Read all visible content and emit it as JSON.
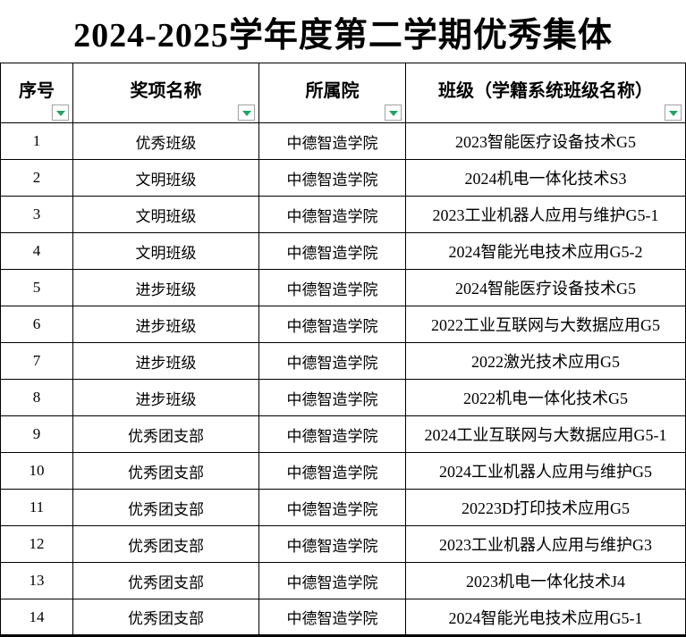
{
  "page": {
    "title": "2024-2025学年度第二学期优秀集体"
  },
  "table": {
    "columns": [
      {
        "label": "序号"
      },
      {
        "label": "奖项名称"
      },
      {
        "label": "所属院"
      },
      {
        "label": "班级（学籍系统班级名称）"
      }
    ],
    "rows": [
      {
        "no": "1",
        "award": "优秀班级",
        "college": "中德智造学院",
        "class_name": "2023智能医疗设备技术G5"
      },
      {
        "no": "2",
        "award": "文明班级",
        "college": "中德智造学院",
        "class_name": "2024机电一体化技术S3"
      },
      {
        "no": "3",
        "award": "文明班级",
        "college": "中德智造学院",
        "class_name": "2023工业机器人应用与维护G5-1"
      },
      {
        "no": "4",
        "award": "文明班级",
        "college": "中德智造学院",
        "class_name": "2024智能光电技术应用G5-2"
      },
      {
        "no": "5",
        "award": "进步班级",
        "college": "中德智造学院",
        "class_name": "2024智能医疗设备技术G5"
      },
      {
        "no": "6",
        "award": "进步班级",
        "college": "中德智造学院",
        "class_name": "2022工业互联网与大数据应用G5"
      },
      {
        "no": "7",
        "award": "进步班级",
        "college": "中德智造学院",
        "class_name": "2022激光技术应用G5"
      },
      {
        "no": "8",
        "award": "进步班级",
        "college": "中德智造学院",
        "class_name": "2022机电一体化技术G5"
      },
      {
        "no": "9",
        "award": "优秀团支部",
        "college": "中德智造学院",
        "class_name": "2024工业互联网与大数据应用G5-1"
      },
      {
        "no": "10",
        "award": "优秀团支部",
        "college": "中德智造学院",
        "class_name": "2024工业机器人应用与维护G5"
      },
      {
        "no": "11",
        "award": "优秀团支部",
        "college": "中德智造学院",
        "class_name": "20223D打印技术应用G5"
      },
      {
        "no": "12",
        "award": "优秀团支部",
        "college": "中德智造学院",
        "class_name": "2023工业机器人应用与维护G3"
      },
      {
        "no": "13",
        "award": "优秀团支部",
        "college": "中德智造学院",
        "class_name": "2023机电一体化技术J4"
      },
      {
        "no": "14",
        "award": "优秀团支部",
        "college": "中德智造学院",
        "class_name": "2024智能光电技术应用G5-1"
      }
    ]
  },
  "icons": {
    "filter_dropdown": "green-down-triangle"
  },
  "colors": {
    "filter_green": "#21a366",
    "filter_button_border": "#a6a6a6",
    "border": "#000000",
    "text": "#000000",
    "background": "#ffffff"
  }
}
